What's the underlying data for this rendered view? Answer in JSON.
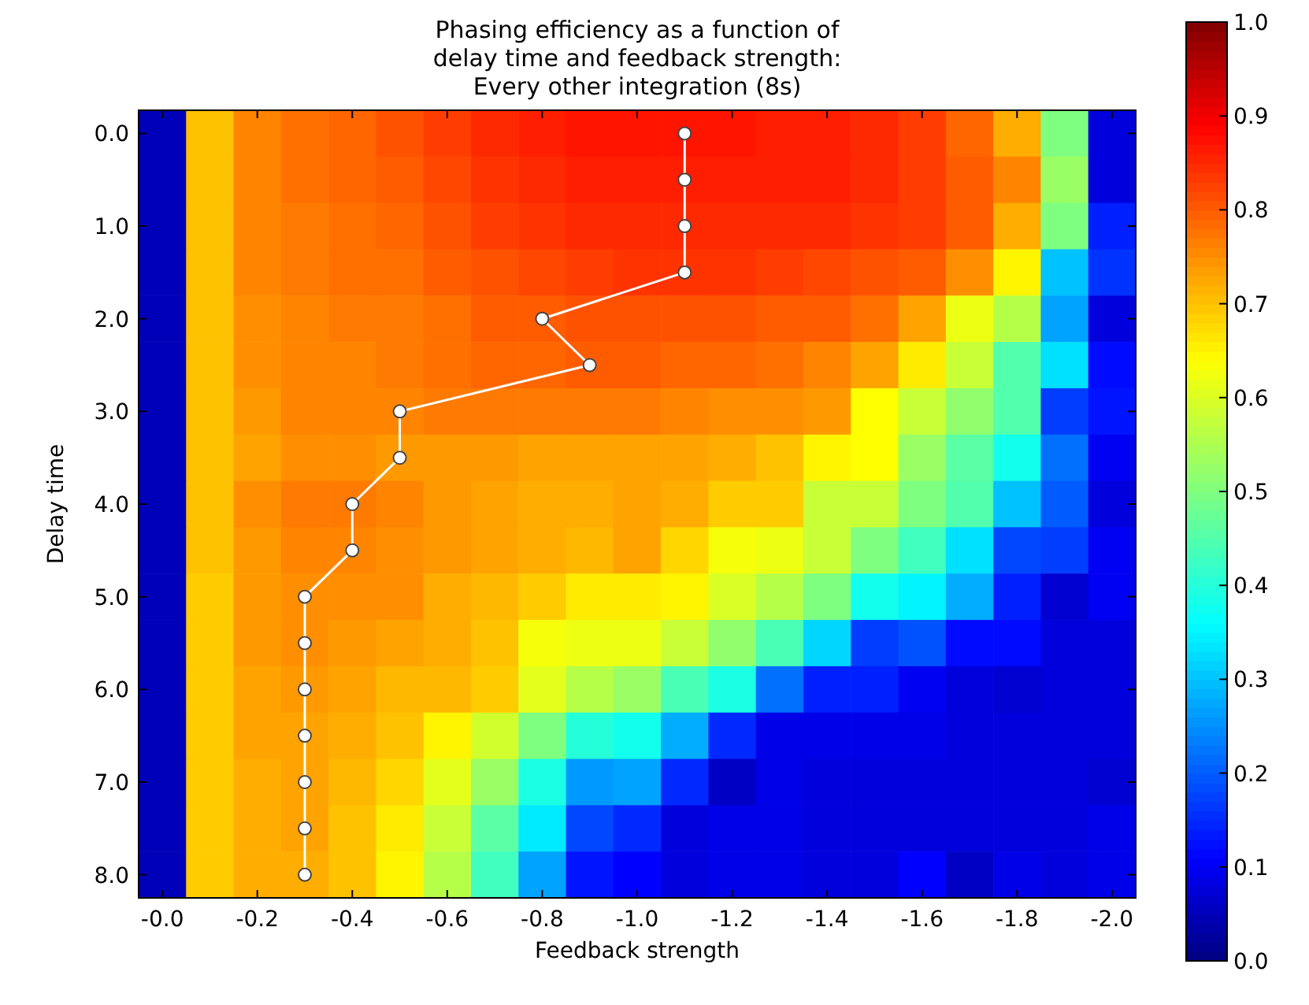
{
  "chart_data": {
    "type": "heatmap",
    "title": "Phasing efficiency as a function of\ndelay time and feedback strength:\nEvery other integration (8s)",
    "xlabel": "Feedback strength",
    "ylabel": "Delay time",
    "x": [
      0,
      -0.1,
      -0.2,
      -0.3,
      -0.4,
      -0.5,
      -0.6,
      -0.7,
      -0.8,
      -0.9,
      -1.0,
      -1.1,
      -1.2,
      -1.3,
      -1.4,
      -1.5,
      -1.6,
      -1.7,
      -1.8,
      -1.9,
      -2.0
    ],
    "xticks": [
      {
        "value": 0,
        "label": "-0.0"
      },
      {
        "value": -0.2,
        "label": "-0.2"
      },
      {
        "value": -0.4,
        "label": "-0.4"
      },
      {
        "value": -0.6,
        "label": "-0.6"
      },
      {
        "value": -0.8,
        "label": "-0.8"
      },
      {
        "value": -1.0,
        "label": "-1.0"
      },
      {
        "value": -1.2,
        "label": "-1.2"
      },
      {
        "value": -1.4,
        "label": "-1.4"
      },
      {
        "value": -1.6,
        "label": "-1.6"
      },
      {
        "value": -1.8,
        "label": "-1.8"
      },
      {
        "value": -2.0,
        "label": "-2.0"
      }
    ],
    "ylim": [
      8.25,
      -0.25
    ],
    "yticks": [
      {
        "value": 0,
        "label": "0.0"
      },
      {
        "value": 1,
        "label": "1.0"
      },
      {
        "value": 2,
        "label": "2.0"
      },
      {
        "value": 3,
        "label": "3.0"
      },
      {
        "value": 4,
        "label": "4.0"
      },
      {
        "value": 5,
        "label": "5.0"
      },
      {
        "value": 6,
        "label": "6.0"
      },
      {
        "value": 7,
        "label": "7.0"
      },
      {
        "value": 8,
        "label": "8.0"
      }
    ],
    "cells": [
      [
        0.05,
        0.7,
        0.76,
        0.78,
        0.79,
        0.81,
        0.83,
        0.85,
        0.86,
        0.87,
        0.87,
        0.87,
        0.87,
        0.86,
        0.86,
        0.85,
        0.83,
        0.79,
        0.72,
        0.5,
        0.08
      ],
      [
        0.05,
        0.7,
        0.76,
        0.78,
        0.79,
        0.8,
        0.82,
        0.84,
        0.85,
        0.86,
        0.86,
        0.86,
        0.86,
        0.86,
        0.86,
        0.85,
        0.83,
        0.8,
        0.76,
        0.53,
        0.08
      ],
      [
        0.05,
        0.7,
        0.76,
        0.77,
        0.78,
        0.79,
        0.81,
        0.83,
        0.84,
        0.85,
        0.85,
        0.85,
        0.85,
        0.85,
        0.85,
        0.84,
        0.83,
        0.8,
        0.72,
        0.5,
        0.14
      ],
      [
        0.05,
        0.7,
        0.76,
        0.77,
        0.78,
        0.78,
        0.8,
        0.81,
        0.82,
        0.83,
        0.84,
        0.84,
        0.84,
        0.83,
        0.82,
        0.81,
        0.8,
        0.75,
        0.65,
        0.3,
        0.16
      ],
      [
        0.05,
        0.7,
        0.75,
        0.76,
        0.77,
        0.77,
        0.78,
        0.8,
        0.8,
        0.81,
        0.81,
        0.81,
        0.81,
        0.8,
        0.8,
        0.78,
        0.73,
        0.62,
        0.56,
        0.27,
        0.08
      ],
      [
        0.05,
        0.7,
        0.75,
        0.76,
        0.76,
        0.77,
        0.78,
        0.79,
        0.79,
        0.8,
        0.8,
        0.79,
        0.79,
        0.78,
        0.76,
        0.73,
        0.66,
        0.58,
        0.45,
        0.33,
        0.12
      ],
      [
        0.05,
        0.7,
        0.74,
        0.76,
        0.76,
        0.76,
        0.77,
        0.77,
        0.77,
        0.77,
        0.77,
        0.76,
        0.75,
        0.75,
        0.74,
        0.64,
        0.58,
        0.52,
        0.45,
        0.17,
        0.13
      ],
      [
        0.05,
        0.7,
        0.73,
        0.75,
        0.75,
        0.74,
        0.74,
        0.74,
        0.73,
        0.73,
        0.73,
        0.73,
        0.72,
        0.7,
        0.65,
        0.64,
        0.53,
        0.46,
        0.38,
        0.22,
        0.1
      ],
      [
        0.05,
        0.7,
        0.75,
        0.77,
        0.77,
        0.76,
        0.74,
        0.73,
        0.72,
        0.72,
        0.73,
        0.72,
        0.69,
        0.69,
        0.58,
        0.58,
        0.5,
        0.45,
        0.3,
        0.2,
        0.08
      ],
      [
        0.05,
        0.7,
        0.74,
        0.76,
        0.76,
        0.75,
        0.74,
        0.73,
        0.72,
        0.71,
        0.73,
        0.68,
        0.63,
        0.62,
        0.58,
        0.5,
        0.43,
        0.33,
        0.18,
        0.17,
        0.1
      ],
      [
        0.05,
        0.69,
        0.74,
        0.75,
        0.75,
        0.75,
        0.72,
        0.71,
        0.69,
        0.66,
        0.66,
        0.65,
        0.6,
        0.56,
        0.5,
        0.38,
        0.35,
        0.28,
        0.14,
        0.07,
        0.1
      ],
      [
        0.05,
        0.69,
        0.74,
        0.75,
        0.74,
        0.73,
        0.72,
        0.7,
        0.63,
        0.62,
        0.62,
        0.58,
        0.52,
        0.44,
        0.32,
        0.17,
        0.19,
        0.12,
        0.12,
        0.08,
        0.08
      ],
      [
        0.05,
        0.69,
        0.73,
        0.74,
        0.73,
        0.71,
        0.71,
        0.69,
        0.61,
        0.56,
        0.53,
        0.44,
        0.39,
        0.22,
        0.14,
        0.14,
        0.1,
        0.08,
        0.07,
        0.08,
        0.08
      ],
      [
        0.05,
        0.69,
        0.73,
        0.73,
        0.72,
        0.7,
        0.65,
        0.59,
        0.5,
        0.4,
        0.38,
        0.28,
        0.15,
        0.09,
        0.09,
        0.09,
        0.09,
        0.08,
        0.08,
        0.08,
        0.08
      ],
      [
        0.05,
        0.69,
        0.72,
        0.73,
        0.71,
        0.68,
        0.61,
        0.53,
        0.39,
        0.26,
        0.27,
        0.15,
        0.06,
        0.09,
        0.08,
        0.08,
        0.08,
        0.08,
        0.08,
        0.08,
        0.07
      ],
      [
        0.05,
        0.69,
        0.72,
        0.73,
        0.7,
        0.66,
        0.58,
        0.46,
        0.34,
        0.18,
        0.15,
        0.08,
        0.09,
        0.09,
        0.08,
        0.08,
        0.08,
        0.08,
        0.08,
        0.08,
        0.09
      ],
      [
        0.05,
        0.69,
        0.72,
        0.72,
        0.7,
        0.65,
        0.56,
        0.43,
        0.27,
        0.13,
        0.11,
        0.08,
        0.09,
        0.09,
        0.08,
        0.08,
        0.11,
        0.06,
        0.09,
        0.08,
        0.09
      ]
    ],
    "clim": [
      0,
      1
    ],
    "cticks": [
      {
        "value": 0,
        "label": "0.0"
      },
      {
        "value": 0.1,
        "label": "0.1"
      },
      {
        "value": 0.2,
        "label": "0.2"
      },
      {
        "value": 0.3,
        "label": "0.3"
      },
      {
        "value": 0.4,
        "label": "0.4"
      },
      {
        "value": 0.5,
        "label": "0.5"
      },
      {
        "value": 0.6,
        "label": "0.6"
      },
      {
        "value": 0.7,
        "label": "0.7"
      },
      {
        "value": 0.8,
        "label": "0.8"
      },
      {
        "value": 0.9,
        "label": "0.9"
      },
      {
        "value": 1,
        "label": "1.0"
      }
    ],
    "xlim": [
      0.05,
      -2.05
    ],
    "series": [
      {
        "type": "line",
        "color": "#ffffff",
        "marker": "circle",
        "line_style": "solid",
        "x": [
          -1.1,
          -1.1,
          -1.1,
          -1.1,
          -0.8,
          -0.9,
          -0.5,
          -0.5,
          -0.4,
          -0.4,
          -0.3,
          -0.3,
          -0.3,
          -0.3,
          -0.3,
          -0.3,
          -0.3
        ],
        "values": [
          0.0,
          0.5,
          1.0,
          1.5,
          2.0,
          2.5,
          3.0,
          3.5,
          4.0,
          4.5,
          5.0,
          5.5,
          6.0,
          6.5,
          7.0,
          7.5,
          8.0
        ]
      }
    ]
  }
}
